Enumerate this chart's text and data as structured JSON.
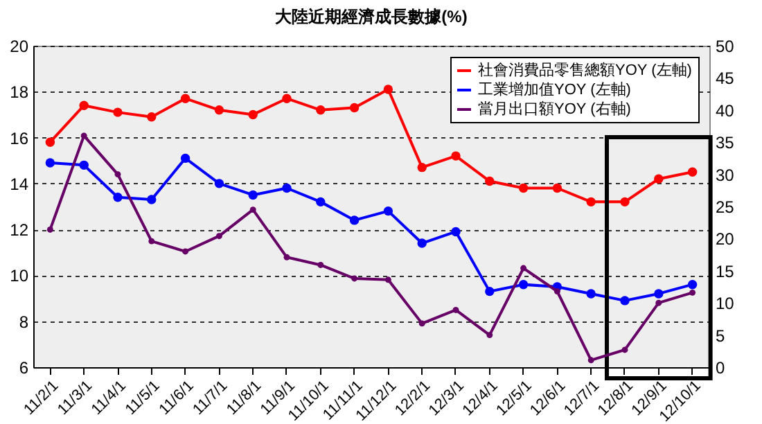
{
  "chart_data": {
    "type": "line",
    "title": "大陸近期經濟成長數據(%)",
    "categories": [
      "11/2/1",
      "11/3/1",
      "11/4/1",
      "11/5/1",
      "11/6/1",
      "11/7/1",
      "11/8/1",
      "11/9/1",
      "11/10/1",
      "11/11/1",
      "11/12/1",
      "12/2/1",
      "12/3/1",
      "12/4/1",
      "12/5/1",
      "12/6/1",
      "12/7/1",
      "12/8/1",
      "12/9/1",
      "12/10/1"
    ],
    "series": [
      {
        "name": "社會消費品零售總額YOY (左軸)",
        "color": "#ff0000",
        "values": [
          15.8,
          17.4,
          17.1,
          16.9,
          17.7,
          17.2,
          17.0,
          17.7,
          17.2,
          17.3,
          18.1,
          14.7,
          15.2,
          14.1,
          13.8,
          13.8,
          13.2,
          13.2,
          14.2,
          14.5
        ]
      },
      {
        "name": "工業增加值YOY (左軸)",
        "color": "#0000ff",
        "values": [
          14.9,
          14.8,
          13.4,
          13.3,
          15.1,
          14.0,
          13.5,
          13.8,
          13.2,
          12.4,
          12.8,
          11.4,
          11.9,
          9.3,
          9.6,
          9.5,
          9.2,
          8.9,
          9.2,
          9.6
        ]
      },
      {
        "name": "當月出口額YOY (右軸)",
        "color": "#660066",
        "axis": "y2",
        "values": [
          21.4,
          36.0,
          30.0,
          19.6,
          18.0,
          20.4,
          24.5,
          17.1,
          15.9,
          13.8,
          13.6,
          6.8,
          8.9,
          5.0,
          15.4,
          11.8,
          1.1,
          2.7,
          10.0,
          11.6
        ]
      }
    ],
    "ylim": [
      6,
      20
    ],
    "yticks": [
      6,
      8,
      10,
      12,
      14,
      16,
      18,
      20
    ],
    "y2lim": [
      0,
      50
    ],
    "y2ticks": [
      0,
      5,
      10,
      15,
      20,
      25,
      30,
      35,
      40,
      45,
      50
    ],
    "grid": "y",
    "legend": "top right",
    "marker": "circle",
    "line_style": "solid"
  }
}
